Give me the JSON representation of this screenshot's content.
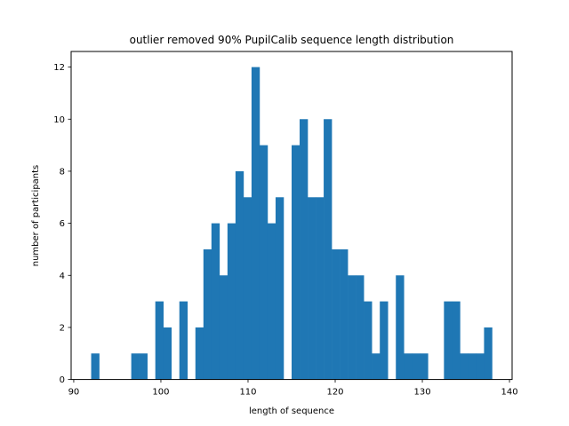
{
  "chart_data": {
    "type": "bar",
    "title": "outlier removed 90% PupilCalib sequence length distribution",
    "xlabel": "length of sequence",
    "ylabel": "number of participants",
    "xlim": [
      89.7,
      140.3
    ],
    "ylim": [
      0,
      12.6
    ],
    "x_ticks": [
      90,
      100,
      110,
      120,
      130,
      140
    ],
    "y_ticks": [
      0,
      2,
      4,
      6,
      8,
      10,
      12
    ],
    "bin_width": 0.92,
    "bin_starts": [
      92.0,
      92.92,
      93.84,
      94.76,
      95.68,
      96.6,
      97.52,
      98.44,
      99.36,
      100.28,
      101.2,
      102.12,
      103.04,
      103.96,
      104.88,
      105.8,
      106.72,
      107.64,
      108.56,
      109.48,
      110.4,
      111.32,
      112.24,
      113.16,
      114.08,
      115.0,
      115.92,
      116.84,
      117.76,
      118.68,
      119.6,
      120.52,
      121.44,
      122.36,
      123.28,
      124.2,
      125.12,
      126.04,
      126.96,
      127.88,
      128.8,
      129.72,
      130.64,
      131.56,
      132.48,
      133.4,
      134.32,
      135.24,
      136.16,
      137.08
    ],
    "values": [
      1,
      0,
      0,
      0,
      0,
      1,
      1,
      0,
      3,
      2,
      0,
      3,
      0,
      2,
      5,
      6,
      4,
      6,
      8,
      7,
      12,
      9,
      6,
      7,
      0,
      9,
      10,
      7,
      7,
      10,
      5,
      5,
      4,
      4,
      3,
      1,
      3,
      0,
      4,
      1,
      1,
      1,
      0,
      0,
      3,
      3,
      1,
      1,
      1,
      2
    ],
    "bar_color": "#1f77b4"
  }
}
